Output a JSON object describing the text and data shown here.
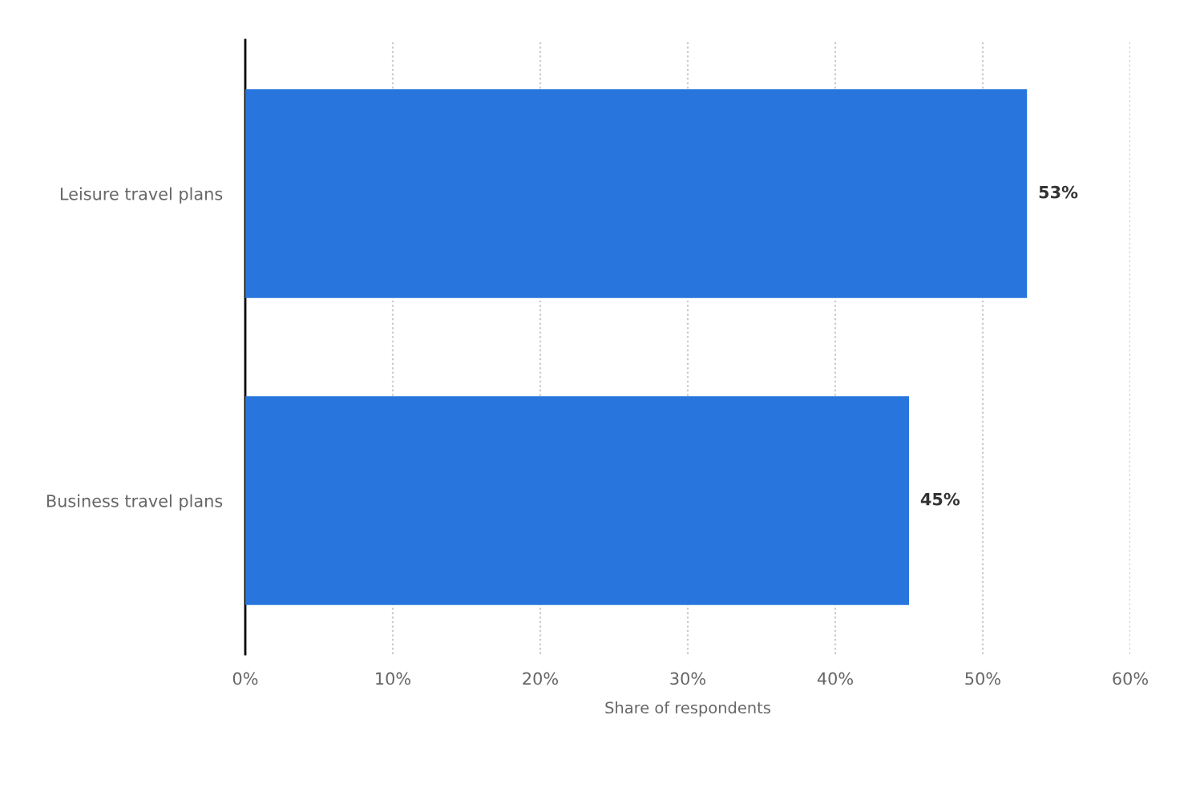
{
  "chart_data": {
    "type": "bar",
    "orientation": "horizontal",
    "xlabel": "Share of respondents",
    "categories": [
      "Leisure travel plans",
      "Business travel plans"
    ],
    "values": [
      53,
      45
    ],
    "color": "#2876dd",
    "value_labels": [
      "53%",
      "45%"
    ],
    "xlim": [
      0,
      60
    ],
    "xticks": [
      {
        "value": 0,
        "label": "0%"
      },
      {
        "value": 10,
        "label": "10%"
      },
      {
        "value": 20,
        "label": "20%"
      },
      {
        "value": 30,
        "label": "30%"
      },
      {
        "value": 40,
        "label": "40%"
      },
      {
        "value": 50,
        "label": "50%"
      },
      {
        "value": 60,
        "label": "60%"
      }
    ],
    "grid": "x"
  }
}
